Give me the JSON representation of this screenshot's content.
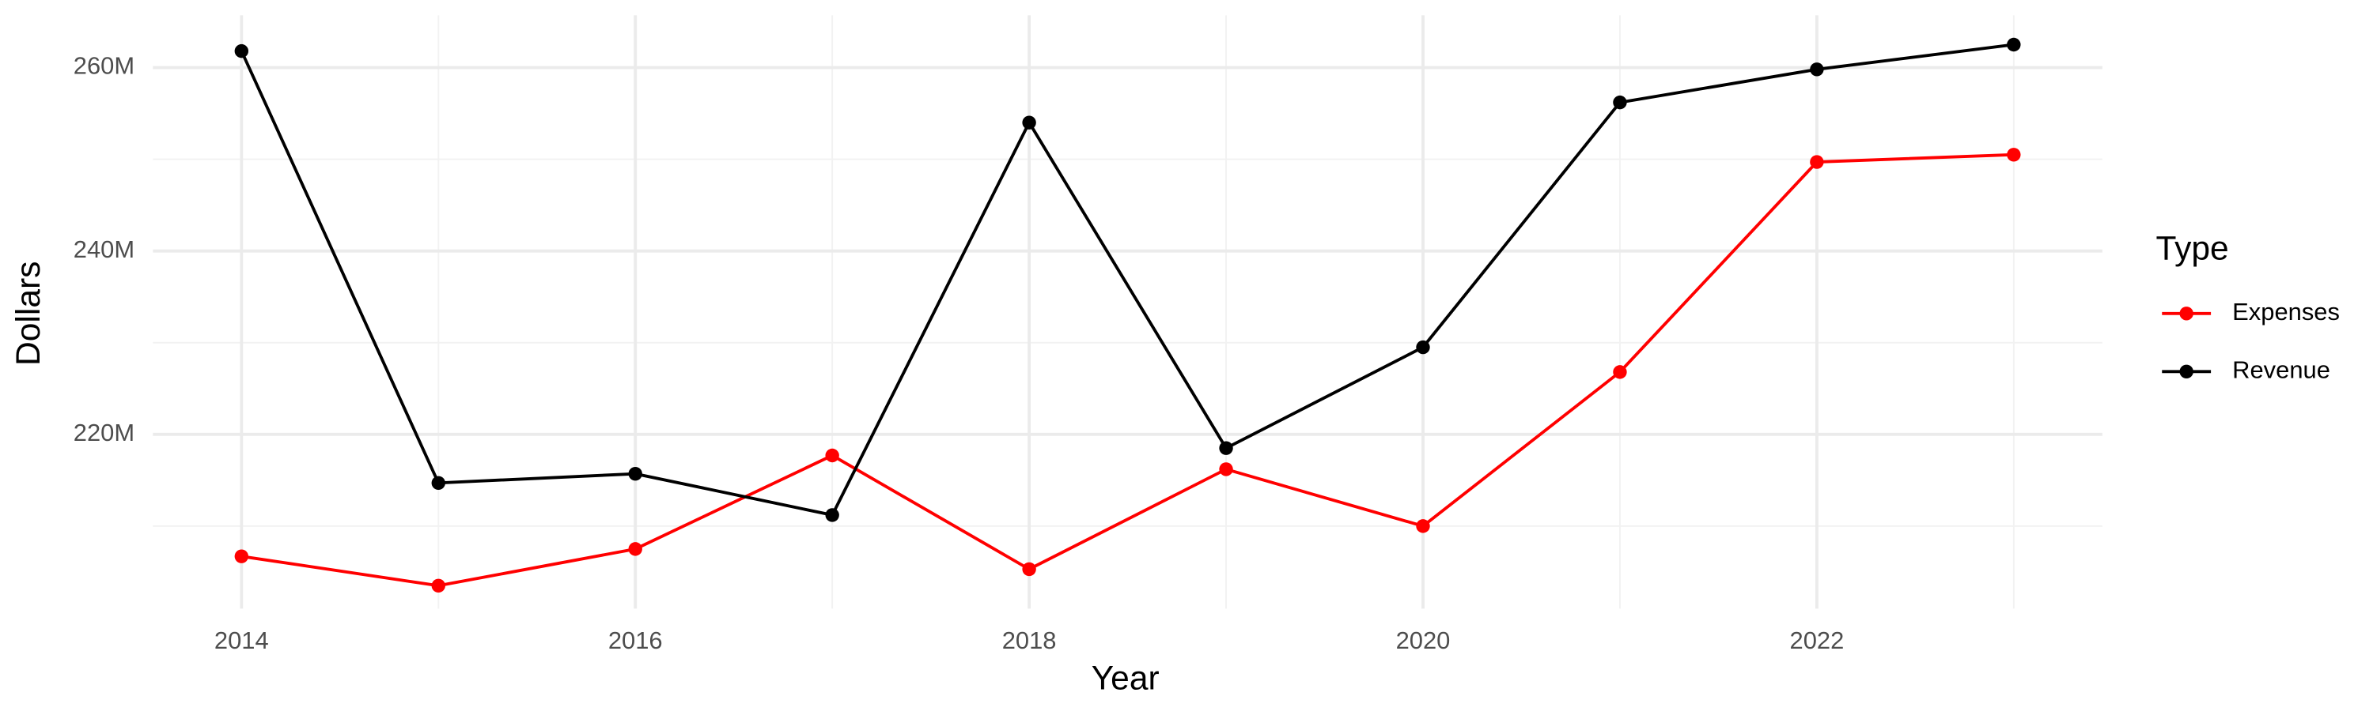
{
  "chart_data": {
    "type": "line",
    "x_label": "Year",
    "y_label": "Dollars",
    "legend_title": "Type",
    "legend": "right",
    "grid": true,
    "x": [
      2014,
      2015,
      2016,
      2017,
      2018,
      2019,
      2020,
      2021,
      2022,
      2023
    ],
    "series": [
      {
        "name": "Expenses",
        "color": "#ff0000",
        "values": [
          206700000,
          203500000,
          207500000,
          217700000,
          205300000,
          216200000,
          210000000,
          226800000,
          249700000,
          250500000
        ]
      },
      {
        "name": "Revenue",
        "color": "#000000",
        "values": [
          261800000,
          214700000,
          215700000,
          211200000,
          254000000,
          218500000,
          229500000,
          256200000,
          259800000,
          262500000
        ]
      }
    ],
    "xlim": [
      2013.55,
      2023.45
    ],
    "xticks": [
      2014,
      2016,
      2018,
      2020,
      2022
    ],
    "ylim": [
      201000000,
      265700000
    ],
    "yticks": [
      {
        "value": 220000000,
        "label": "220M"
      },
      {
        "value": 240000000,
        "label": "240M"
      },
      {
        "value": 260000000,
        "label": "260M"
      }
    ]
  }
}
